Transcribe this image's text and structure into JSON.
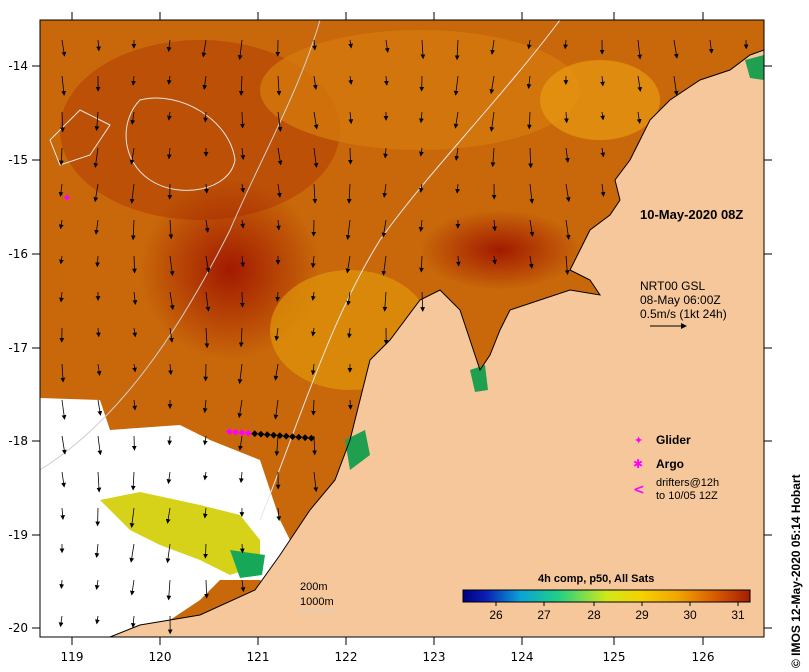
{
  "map": {
    "date_label": "10-May-2020 08Z",
    "current_legend": {
      "line1": "NRT00 GSL",
      "line2": "08-May 06:00Z",
      "line3": "0.5m/s (1kt 24h)"
    },
    "symbols": {
      "glider": "Glider",
      "argo": "Argo",
      "drifters_line1": "drifters@12h",
      "drifters_line2": "to 10/05 12Z"
    },
    "contours": {
      "c200": "200m",
      "c1000": "1000m"
    },
    "colorbar": {
      "title": "4h comp, p50, All Sats",
      "ticks": [
        "26",
        "27",
        "28",
        "29",
        "30",
        "31"
      ],
      "colors": {
        "c26": "#0a1fb5",
        "c27": "#0aa3d6",
        "c28": "#1fcf87",
        "c29": "#cfe81a",
        "c30": "#f0a500",
        "c31": "#a31d00"
      }
    },
    "credit": "© IMOS 12-May-2020 05:14 Hobart",
    "axes": {
      "x_ticks": [
        "119",
        "120",
        "121",
        "122",
        "123",
        "124",
        "125",
        "126"
      ],
      "y_ticks": [
        "-14",
        "-15",
        "-16",
        "-17",
        "-18",
        "-19",
        "-20"
      ]
    },
    "colors": {
      "land": "#f6c79b",
      "sea_warm": "#c05a00",
      "sea_hot": "#a11d00",
      "sea_mid": "#e0a000",
      "cloud": "#ffffff",
      "magenta": "#ff00ff"
    }
  }
}
